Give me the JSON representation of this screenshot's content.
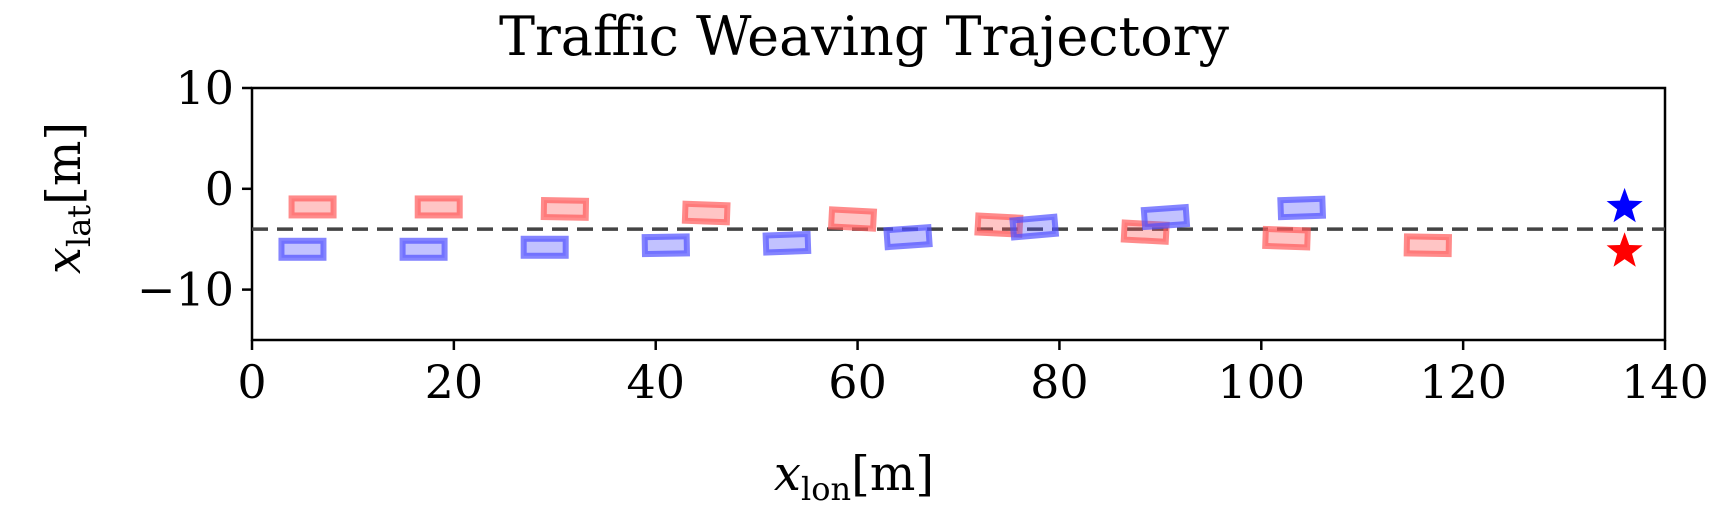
{
  "chart_data": {
    "type": "scatter",
    "title": "Traffic Weaving Trajectory",
    "xlabel": {
      "main": "x",
      "sub": "lon",
      "unit": "[m]"
    },
    "ylabel": {
      "main": "x",
      "sub": "lat",
      "unit": "[m]"
    },
    "xlim": [
      0,
      140
    ],
    "ylim": [
      -15,
      10
    ],
    "xticks": [
      0,
      20,
      40,
      60,
      80,
      100,
      120,
      140
    ],
    "yticks": [
      10,
      0,
      -10
    ],
    "ytick_labels": [
      "10",
      "0",
      "−10"
    ],
    "reference_line": {
      "y": -4,
      "style": "dashed",
      "color": "#444444"
    },
    "grid": false,
    "series": [
      {
        "color": "#ff5a5a",
        "marker": "vehicle-box",
        "points": [
          {
            "x": 6,
            "y": -1.8,
            "heading_deg": 0
          },
          {
            "x": 18.5,
            "y": -1.8,
            "heading_deg": 0
          },
          {
            "x": 31,
            "y": -2.0,
            "heading_deg": -1
          },
          {
            "x": 45,
            "y": -2.4,
            "heading_deg": -2
          },
          {
            "x": 59.5,
            "y": -3.0,
            "heading_deg": -3
          },
          {
            "x": 74,
            "y": -3.6,
            "heading_deg": -3
          },
          {
            "x": 88.5,
            "y": -4.3,
            "heading_deg": -3
          },
          {
            "x": 102.5,
            "y": -4.9,
            "heading_deg": -2
          },
          {
            "x": 116.5,
            "y": -5.6,
            "heading_deg": -1
          }
        ],
        "goal": {
          "x": 136,
          "y": -6.2
        }
      },
      {
        "color": "#5050ff",
        "marker": "vehicle-box",
        "points": [
          {
            "x": 5,
            "y": -6.0,
            "heading_deg": 0
          },
          {
            "x": 17,
            "y": -6.0,
            "heading_deg": 0
          },
          {
            "x": 29,
            "y": -5.8,
            "heading_deg": 0
          },
          {
            "x": 41,
            "y": -5.6,
            "heading_deg": 1
          },
          {
            "x": 53,
            "y": -5.4,
            "heading_deg": 2
          },
          {
            "x": 65,
            "y": -4.8,
            "heading_deg": 4
          },
          {
            "x": 77.5,
            "y": -3.8,
            "heading_deg": 5
          },
          {
            "x": 90.5,
            "y": -2.8,
            "heading_deg": 4
          },
          {
            "x": 104,
            "y": -1.9,
            "heading_deg": 2
          }
        ],
        "goal": {
          "x": 136,
          "y": -1.8
        }
      }
    ]
  }
}
